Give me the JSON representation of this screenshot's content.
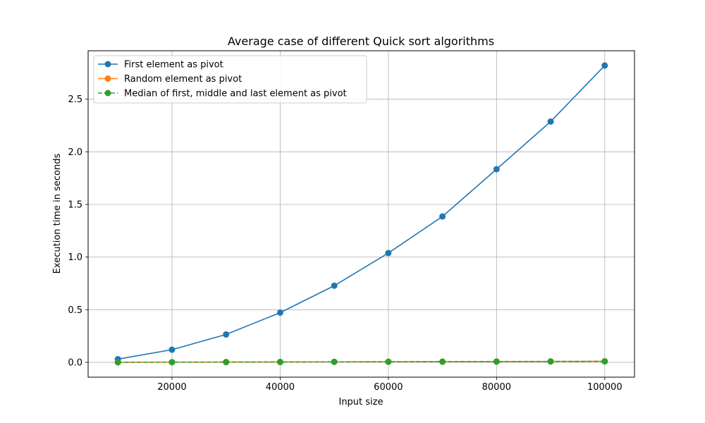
{
  "chart_data": {
    "type": "line",
    "title": "Average case of different Quick sort algorithms",
    "xlabel": "Input size",
    "ylabel": "Execution time in seconds",
    "x": [
      10000,
      20000,
      30000,
      40000,
      50000,
      60000,
      70000,
      80000,
      90000,
      100000
    ],
    "xlim": [
      4500,
      105500
    ],
    "ylim": [
      -0.141,
      2.96
    ],
    "xticks": [
      20000,
      40000,
      60000,
      80000,
      100000
    ],
    "yticks": [
      0.0,
      0.5,
      1.0,
      1.5,
      2.0,
      2.5
    ],
    "xtick_labels": [
      "20000",
      "40000",
      "60000",
      "80000",
      "100000"
    ],
    "ytick_labels": [
      "0.0",
      "0.5",
      "1.0",
      "1.5",
      "2.0",
      "2.5"
    ],
    "grid": true,
    "legend_position": "top-left",
    "series": [
      {
        "name": "First element as pivot",
        "color": "#1f77b4",
        "linestyle": "solid",
        "marker": "circle",
        "values": [
          0.03,
          0.12,
          0.265,
          0.472,
          0.728,
          1.038,
          1.386,
          1.835,
          2.287,
          2.82
        ]
      },
      {
        "name": "Random element as pivot",
        "color": "#ff7f0e",
        "linestyle": "solid",
        "marker": "circle",
        "values": [
          0.0008,
          0.0017,
          0.0027,
          0.0036,
          0.0047,
          0.0057,
          0.0067,
          0.0077,
          0.0088,
          0.0098
        ]
      },
      {
        "name": "Median of first, middle and last element as pivot",
        "color": "#2ca02c",
        "linestyle": "dashed",
        "marker": "circle",
        "values": [
          0.0007,
          0.0015,
          0.0024,
          0.0033,
          0.0043,
          0.0052,
          0.0062,
          0.0071,
          0.0081,
          0.0091
        ]
      }
    ]
  }
}
